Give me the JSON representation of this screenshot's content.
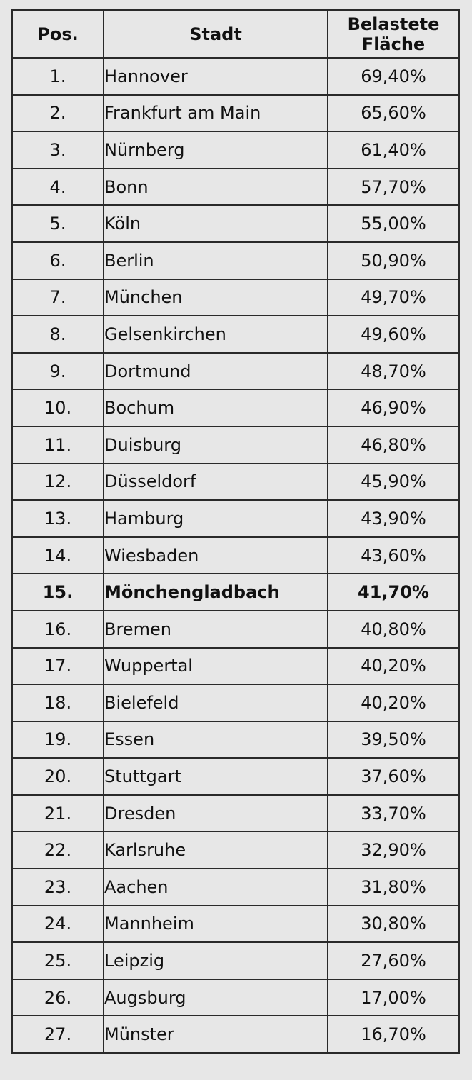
{
  "table": {
    "headers": {
      "pos": "Pos.",
      "city": "Stadt",
      "value_line1": "Belastete",
      "value_line2": "Fläche"
    },
    "highlight_index": 14,
    "rows": [
      {
        "pos": "1.",
        "city": "Hannover",
        "value": "69,40%"
      },
      {
        "pos": "2.",
        "city": "Frankfurt am Main",
        "value": "65,60%"
      },
      {
        "pos": "3.",
        "city": "Nürnberg",
        "value": "61,40%"
      },
      {
        "pos": "4.",
        "city": "Bonn",
        "value": "57,70%"
      },
      {
        "pos": "5.",
        "city": "Köln",
        "value": "55,00%"
      },
      {
        "pos": "6.",
        "city": "Berlin",
        "value": "50,90%"
      },
      {
        "pos": "7.",
        "city": "München",
        "value": "49,70%"
      },
      {
        "pos": "8.",
        "city": "Gelsenkirchen",
        "value": "49,60%"
      },
      {
        "pos": "9.",
        "city": "Dortmund",
        "value": "48,70%"
      },
      {
        "pos": "10.",
        "city": "Bochum",
        "value": "46,90%"
      },
      {
        "pos": "11.",
        "city": "Duisburg",
        "value": "46,80%"
      },
      {
        "pos": "12.",
        "city": "Düsseldorf",
        "value": "45,90%"
      },
      {
        "pos": "13.",
        "city": "Hamburg",
        "value": "43,90%"
      },
      {
        "pos": "14.",
        "city": "Wiesbaden",
        "value": "43,60%"
      },
      {
        "pos": "15.",
        "city": "Mönchengladbach",
        "value": "41,70%"
      },
      {
        "pos": "16.",
        "city": "Bremen",
        "value": "40,80%"
      },
      {
        "pos": "17.",
        "city": "Wuppertal",
        "value": "40,20%"
      },
      {
        "pos": "18.",
        "city": "Bielefeld",
        "value": "40,20%"
      },
      {
        "pos": "19.",
        "city": "Essen",
        "value": "39,50%"
      },
      {
        "pos": "20.",
        "city": "Stuttgart",
        "value": "37,60%"
      },
      {
        "pos": "21.",
        "city": "Dresden",
        "value": "33,70%"
      },
      {
        "pos": "22.",
        "city": "Karlsruhe",
        "value": "32,90%"
      },
      {
        "pos": "23.",
        "city": "Aachen",
        "value": "31,80%"
      },
      {
        "pos": "24.",
        "city": "Mannheim",
        "value": "30,80%"
      },
      {
        "pos": "25.",
        "city": "Leipzig",
        "value": "27,60%"
      },
      {
        "pos": "26.",
        "city": "Augsburg",
        "value": "17,00%"
      },
      {
        "pos": "27.",
        "city": "Münster",
        "value": "16,70%"
      }
    ]
  }
}
